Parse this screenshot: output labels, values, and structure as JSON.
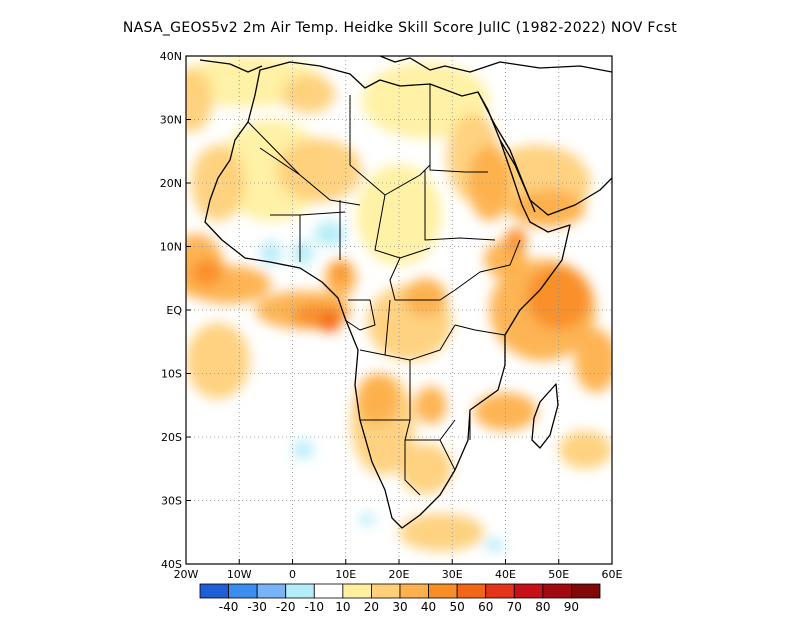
{
  "title": "NASA_GEOS5v2  2m Air Temp. Heidke Skill Score JulIC (1982-2022) NOV Fcst",
  "map": {
    "lon_range": [
      -20,
      60
    ],
    "lat_range": [
      -40,
      40
    ],
    "lon_ticks": [
      {
        "value": -20,
        "label": "20W"
      },
      {
        "value": -10,
        "label": "10W"
      },
      {
        "value": 0,
        "label": "0"
      },
      {
        "value": 10,
        "label": "10E"
      },
      {
        "value": 20,
        "label": "20E"
      },
      {
        "value": 30,
        "label": "30E"
      },
      {
        "value": 40,
        "label": "40E"
      },
      {
        "value": 50,
        "label": "50E"
      },
      {
        "value": 60,
        "label": "60E"
      }
    ],
    "lat_ticks": [
      {
        "value": 40,
        "label": "40N"
      },
      {
        "value": 30,
        "label": "30N"
      },
      {
        "value": 20,
        "label": "20N"
      },
      {
        "value": 10,
        "label": "10N"
      },
      {
        "value": 0,
        "label": "EQ"
      },
      {
        "value": -10,
        "label": "10S"
      },
      {
        "value": -20,
        "label": "20S"
      },
      {
        "value": -30,
        "label": "30S"
      },
      {
        "value": -40,
        "label": "40S"
      }
    ],
    "grid": "dotted",
    "background_color": "#ffffff",
    "skill_regions": [
      {
        "level": 20,
        "lon": -19,
        "lat": 33,
        "rlon": 4,
        "rlat": 5
      },
      {
        "level": 10,
        "lon": -8,
        "lat": 36,
        "rlon": 14,
        "rlat": 4
      },
      {
        "level": 20,
        "lon": 3,
        "lat": 34,
        "rlon": 5,
        "rlat": 3
      },
      {
        "level": 10,
        "lon": 25,
        "lat": 33,
        "rlon": 12,
        "rlat": 6
      },
      {
        "level": 20,
        "lon": 34,
        "lat": 24,
        "rlon": 5,
        "rlat": 7
      },
      {
        "level": 30,
        "lon": 37,
        "lat": 20,
        "rlon": 4,
        "rlat": 6
      },
      {
        "level": 20,
        "lon": 46,
        "lat": 20,
        "rlon": 10,
        "rlat": 6
      },
      {
        "level": 30,
        "lon": 48,
        "lat": 16,
        "rlon": 7,
        "rlat": 3
      },
      {
        "level": 10,
        "lon": -4,
        "lat": 22,
        "rlon": 10,
        "rlat": 8
      },
      {
        "level": 20,
        "lon": -14,
        "lat": 20,
        "rlon": 5,
        "rlat": 6
      },
      {
        "level": 20,
        "lon": 5,
        "lat": 22,
        "rlon": 8,
        "rlat": 5
      },
      {
        "level": 10,
        "lon": 20,
        "lat": 15,
        "rlon": 8,
        "rlat": 8
      },
      {
        "level": 30,
        "lon": -18,
        "lat": 7,
        "rlon": 5,
        "rlat": 5
      },
      {
        "level": 30,
        "lon": -12,
        "lat": 4,
        "rlon": 8,
        "rlat": 3
      },
      {
        "level": 40,
        "lon": -16,
        "lat": 6,
        "rlon": 3,
        "rlat": 2
      },
      {
        "level": 30,
        "lon": 2,
        "lat": 0,
        "rlon": 9,
        "rlat": 3
      },
      {
        "level": 40,
        "lon": 5,
        "lat": -1,
        "rlon": 5,
        "rlat": 2
      },
      {
        "level": 50,
        "lon": 7,
        "lat": -2,
        "rlon": 2,
        "rlat": 1.5
      },
      {
        "level": 30,
        "lon": 9,
        "lat": 5,
        "rlon": 3,
        "rlat": 3
      },
      {
        "level": 40,
        "lon": 9,
        "lat": 6,
        "rlon": 1.5,
        "rlat": 1.5
      },
      {
        "level": 30,
        "lon": 25,
        "lat": 2,
        "rlon": 4,
        "rlat": 3
      },
      {
        "level": 20,
        "lon": 22,
        "lat": -2,
        "rlon": 8,
        "rlat": 6
      },
      {
        "level": 20,
        "lon": 17,
        "lat": -18,
        "rlon": 6,
        "rlat": 8
      },
      {
        "level": 30,
        "lon": 16,
        "lat": -14,
        "rlon": 4,
        "rlat": 4
      },
      {
        "level": 30,
        "lon": 26,
        "lat": -15,
        "rlon": 3,
        "rlat": 3
      },
      {
        "level": 20,
        "lon": 25,
        "lat": -25,
        "rlon": 5,
        "rlat": 4
      },
      {
        "level": 30,
        "lon": 47,
        "lat": 0,
        "rlon": 10,
        "rlat": 8
      },
      {
        "level": 40,
        "lon": 50,
        "lat": 2,
        "rlon": 6,
        "rlat": 5
      },
      {
        "level": 30,
        "lon": 57,
        "lat": -8,
        "rlon": 4,
        "rlat": 5
      },
      {
        "level": 30,
        "lon": 40,
        "lat": 8,
        "rlon": 4,
        "rlat": 3
      },
      {
        "level": 40,
        "lon": 42,
        "lat": 11,
        "rlon": 2,
        "rlat": 2
      },
      {
        "level": 30,
        "lon": 40,
        "lat": -16,
        "rlon": 6,
        "rlat": 3
      },
      {
        "level": 20,
        "lon": 55,
        "lat": -22,
        "rlon": 5,
        "rlat": 3
      },
      {
        "level": 20,
        "lon": 28,
        "lat": -35,
        "rlon": 8,
        "rlat": 3
      },
      {
        "level": 20,
        "lon": -14,
        "lat": -8,
        "rlon": 6,
        "rlat": 6
      },
      {
        "level": -10,
        "lon": 7,
        "lat": 12,
        "rlon": 3,
        "rlat": 2
      },
      {
        "level": -10,
        "lon": -4,
        "lat": 9,
        "rlon": 2,
        "rlat": 2
      },
      {
        "level": -10,
        "lon": 2,
        "lat": 9,
        "rlon": 2,
        "rlat": 2
      },
      {
        "level": -10,
        "lon": 33,
        "lat": -35,
        "rlon": 2.5,
        "rlat": 1.5
      },
      {
        "level": -10,
        "lon": 38,
        "lat": -37,
        "rlon": 2,
        "rlat": 1
      },
      {
        "level": -10,
        "lon": 2,
        "lat": -22,
        "rlon": 2,
        "rlat": 1.5
      },
      {
        "level": -10,
        "lon": 14,
        "lat": -33,
        "rlon": 1.5,
        "rlat": 1
      }
    ]
  },
  "colorbar": {
    "levels": [
      -40,
      -30,
      -20,
      -10,
      10,
      20,
      30,
      40,
      50,
      60,
      70,
      80,
      90
    ],
    "labels": [
      "-40",
      "-30",
      "-20",
      "-10",
      "10",
      "20",
      "30",
      "40",
      "50",
      "60",
      "70",
      "80",
      "90"
    ],
    "colors": [
      "#1e5fd8",
      "#3c8df0",
      "#78b4f5",
      "#b4ecf8",
      "#ffffff",
      "#fff0a0",
      "#fed07a",
      "#fdb04c",
      "#f98e28",
      "#f26618",
      "#e4341a",
      "#c8101a",
      "#a00a10",
      "#800808"
    ]
  }
}
